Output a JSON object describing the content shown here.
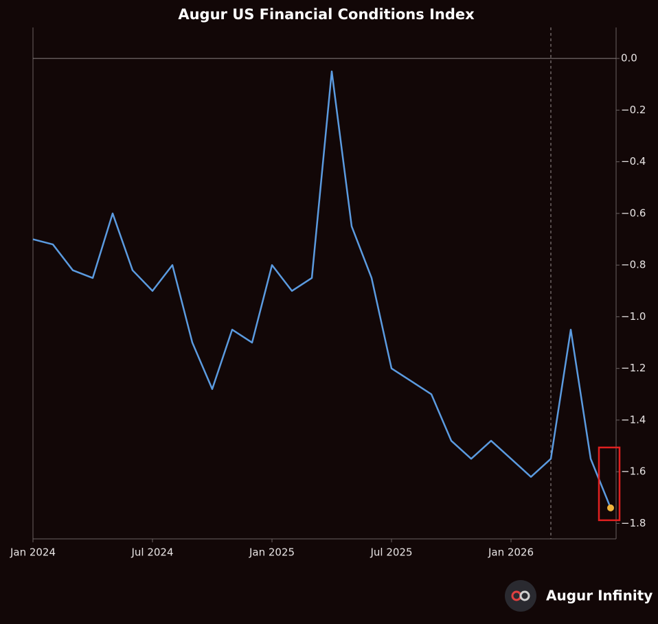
{
  "chart_data": {
    "type": "line",
    "title": "Augur US Financial Conditions Index",
    "brand": "Augur Infinity",
    "x": [
      "2024-01",
      "2024-02",
      "2024-03",
      "2024-04",
      "2024-05",
      "2024-06",
      "2024-07",
      "2024-08",
      "2024-09",
      "2024-10",
      "2024-11",
      "2024-12",
      "2025-01",
      "2025-02",
      "2025-03",
      "2025-04",
      "2025-05",
      "2025-06",
      "2025-07",
      "2025-08",
      "2025-09",
      "2025-10",
      "2025-11",
      "2025-12",
      "2026-01",
      "2026-02",
      "2026-03",
      "2026-04",
      "2026-05",
      "2026-06"
    ],
    "series": [
      {
        "name": "Augur US Financial Conditions Index",
        "color": "#5b9be0",
        "values": [
          -0.7,
          -0.72,
          -0.82,
          -0.85,
          -0.6,
          -0.82,
          -0.9,
          -0.8,
          -1.1,
          -1.28,
          -1.05,
          -1.1,
          -0.8,
          -0.9,
          -0.85,
          -0.05,
          -0.65,
          -0.85,
          -1.2,
          -1.25,
          -1.3,
          -1.48,
          -1.55,
          -1.48,
          -1.55,
          -1.62,
          -1.55,
          -1.05,
          -1.55,
          -1.74
        ]
      }
    ],
    "last_point_color": "#f0b43c",
    "vline": "2026-03",
    "xticks": [
      {
        "value": "2024-01",
        "label": "Jan 2024"
      },
      {
        "value": "2024-07",
        "label": "Jul 2024"
      },
      {
        "value": "2025-01",
        "label": "Jan 2025"
      },
      {
        "value": "2025-07",
        "label": "Jul 2025"
      },
      {
        "value": "2026-01",
        "label": "Jan 2026"
      }
    ],
    "ylim": [
      -1.86,
      0.12
    ],
    "yticks": [
      {
        "value": 0,
        "label": "0.0"
      },
      {
        "value": -0.2,
        "label": "−0.2"
      },
      {
        "value": -0.4,
        "label": "−0.4"
      },
      {
        "value": -0.6,
        "label": "−0.6"
      },
      {
        "value": -0.8,
        "label": "−0.8"
      },
      {
        "value": -1.0,
        "label": "−1.0"
      },
      {
        "value": -1.2,
        "label": "−1.2"
      },
      {
        "value": -1.4,
        "label": "−1.4"
      },
      {
        "value": -1.6,
        "label": "−1.6"
      },
      {
        "value": -1.8,
        "label": "−1.8"
      }
    ],
    "zero_line": true
  }
}
